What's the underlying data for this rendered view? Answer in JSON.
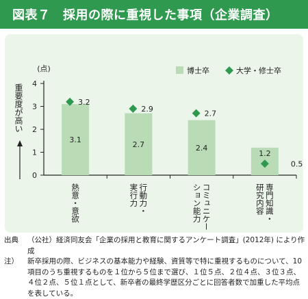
{
  "title": "図表７　採用の際に重視した事項（企業調査）",
  "chart_data": {
    "type": "bar",
    "unit_label": "(点)",
    "ylabel": "重要度が高い",
    "ylim": [
      0,
      4
    ],
    "yticks": [
      "0",
      "1",
      "2",
      "3",
      "4"
    ],
    "categories": [
      "熱意・意欲",
      "行動力・実行力",
      "コミュニケーション能力",
      "専門知識・研究内容"
    ],
    "category_lines": [
      [
        "熱意・意欲"
      ],
      [
        "行動力・",
        "実行力"
      ],
      [
        "コミュニケー",
        "ション能力"
      ],
      [
        "専門知識・",
        "研究内容"
      ]
    ],
    "series": [
      {
        "name": "博士卒",
        "type": "bar",
        "color": "#b9dcb6",
        "values": [
          3.1,
          2.7,
          2.4,
          1.2
        ],
        "labels": [
          "3.1",
          "2.7",
          "2.4",
          "1.2"
        ]
      },
      {
        "name": "大学・修士卒",
        "type": "marker",
        "color": "#2f9a4f",
        "values": [
          3.2,
          2.9,
          2.7,
          0.5
        ],
        "labels": [
          "3.2",
          "2.9",
          "2.7",
          "0.5"
        ]
      }
    ],
    "legend_position": "top-right"
  },
  "footnotes": {
    "source_label": "出典",
    "source_text": "（公社）経済同友会「企業の採用と教育に関するアンケート調査」(2012年) により作成",
    "note_label": "注）",
    "note_text": "新卒採用の際、ビジネスの基本能力や経験、資質等で特に重視するものについて、10項目のうち重視するものを１位から５位まで選び、１位５点、２位４点、３位３点、４位２点、５位１点として、新卒者の最終学歴区分ごとに回答者数で加重した平均点を表している。"
  }
}
